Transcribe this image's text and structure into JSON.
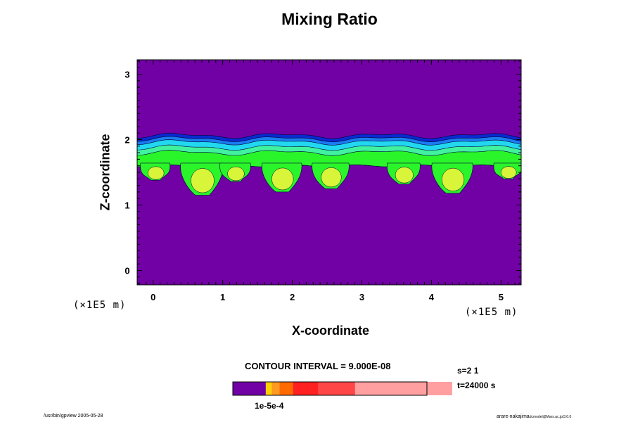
{
  "chart_data": {
    "type": "heatmap",
    "title": "Mixing Ratio",
    "xlabel": "X-coordinate",
    "ylabel": "Z-coordinate",
    "x_unit": "(×1E5 m)",
    "y_unit": "(×1E5 m)",
    "xlim": [
      -0.23,
      5.29
    ],
    "ylim": [
      -0.22,
      3.22
    ],
    "xticks": [
      "0",
      "1",
      "2",
      "3",
      "4",
      "5"
    ],
    "yticks": [
      "0",
      "1",
      "2",
      "3"
    ],
    "background_value_color": "#7100a5",
    "cloud_layer": {
      "z_top": 2.06,
      "z_bottom": 1.6
    },
    "plumes": [
      {
        "x": 0.03,
        "z_bottom": 1.38
      },
      {
        "x": 0.7,
        "z_bottom": 1.15
      },
      {
        "x": 1.18,
        "z_bottom": 1.36
      },
      {
        "x": 1.85,
        "z_bottom": 1.2
      },
      {
        "x": 2.55,
        "z_bottom": 1.25
      },
      {
        "x": 3.6,
        "z_bottom": 1.32
      },
      {
        "x": 4.3,
        "z_bottom": 1.18
      },
      {
        "x": 5.1,
        "z_bottom": 1.4
      }
    ],
    "contour_interval": "CONTOUR INTERVAL = 9.000E-08",
    "colorbar": {
      "label": "1e-5e-4",
      "colors": [
        "#7100a5",
        "#ffd000",
        "#ff9a20",
        "#ff6a00",
        "#ff2020",
        "#ff4646",
        "#ff9f9f"
      ],
      "fractions": [
        0.17,
        0.03,
        0.04,
        0.07,
        0.13,
        0.19,
        0.5
      ]
    }
  },
  "info": {
    "s": "s=2 1",
    "t": "t=24000 s"
  },
  "footer": {
    "left": "/usr/bin/gpview 2005-05-28",
    "right_main": "arare-nakajima",
    "right_sub": "dcmodel@Mars.ac.jp/3.0.0"
  }
}
